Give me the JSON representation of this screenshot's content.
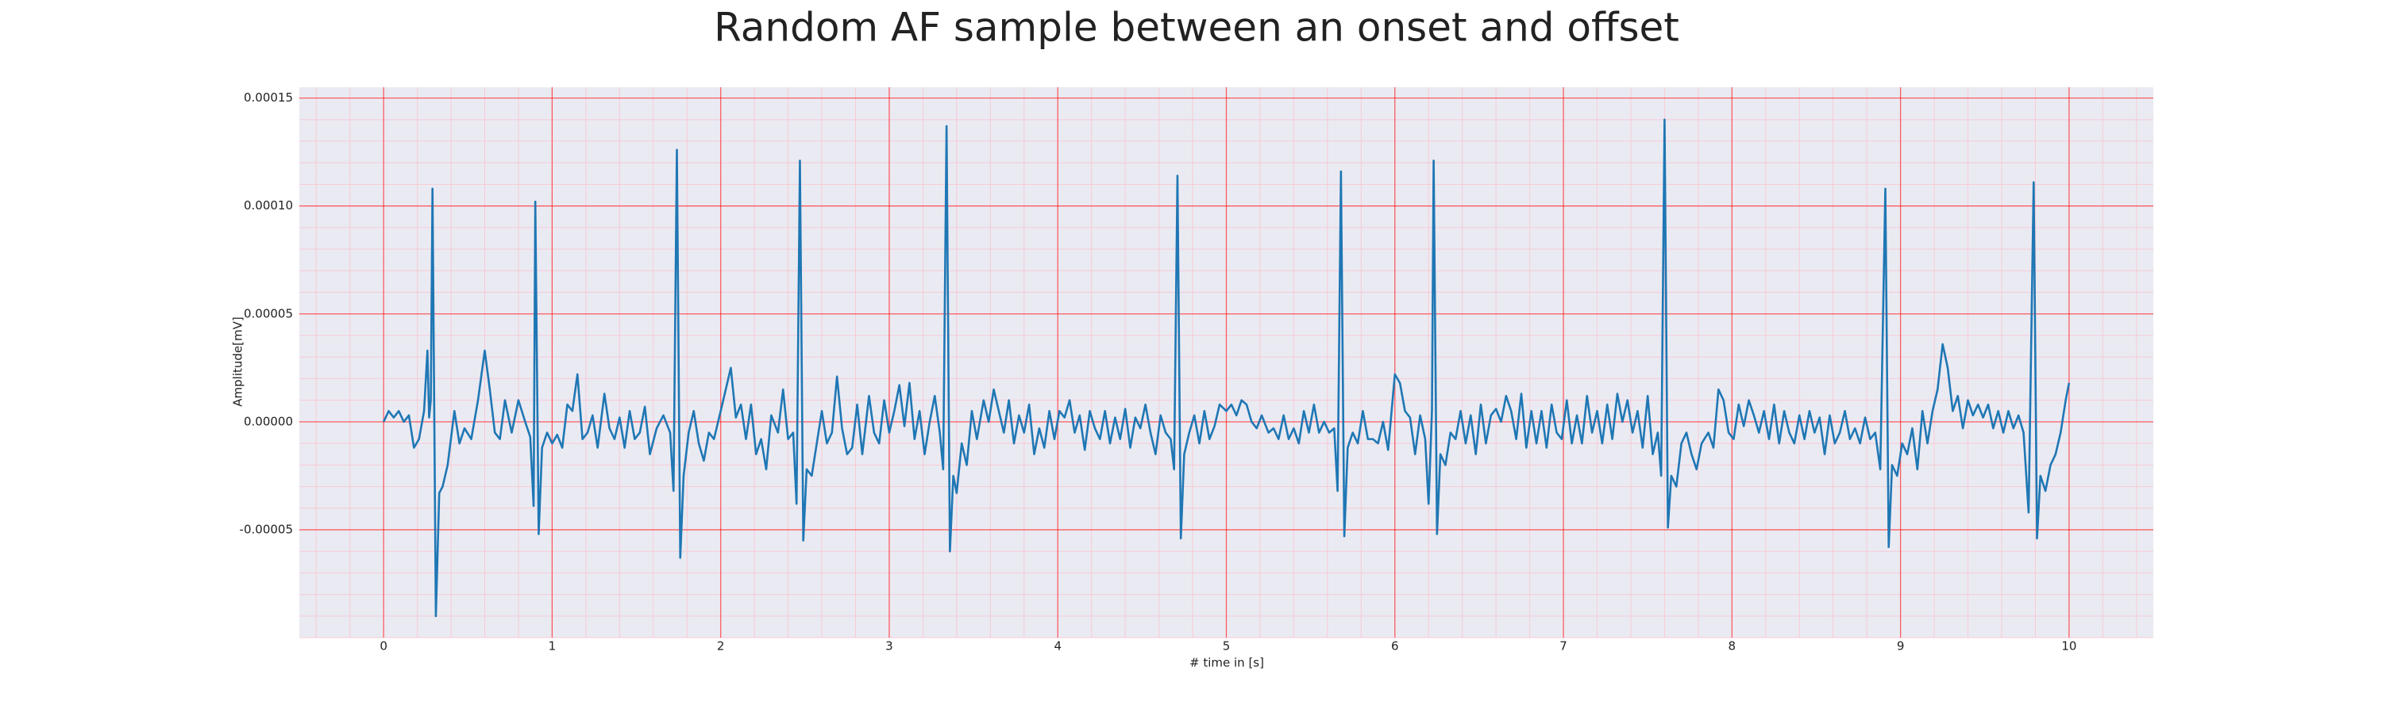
{
  "chart_data": {
    "type": "line",
    "title": "Random AF sample between an onset and offset",
    "x_label": "# time in [s]",
    "y_label": "Amplitude[mV]",
    "color": "#1f77b4",
    "grid": true,
    "minor_grid": true,
    "xlim": [
      -0.5,
      10.5
    ],
    "ylim": [
      -0.0001,
      0.000155
    ],
    "xticks": [
      0,
      1,
      2,
      3,
      4,
      5,
      6,
      7,
      8,
      9,
      10
    ],
    "yticks": [
      {
        "value": -5e-05,
        "label": "-0.00005"
      },
      {
        "value": 0,
        "label": "0.00000"
      },
      {
        "value": 5e-05,
        "label": "0.00005"
      },
      {
        "value": 0.0001,
        "label": "0.00010"
      },
      {
        "value": 0.00015,
        "label": "0.00015"
      }
    ],
    "x": [
      0,
      0.03,
      0.06,
      0.09,
      0.12,
      0.15,
      0.18,
      0.21,
      0.24,
      0.26,
      0.27,
      0.28,
      0.29,
      0.31,
      0.33,
      0.35,
      0.38,
      0.42,
      0.45,
      0.48,
      0.52,
      0.56,
      0.6,
      0.63,
      0.66,
      0.69,
      0.72,
      0.76,
      0.8,
      0.84,
      0.87,
      0.89,
      0.9,
      0.92,
      0.94,
      0.97,
      1.0,
      1.03,
      1.06,
      1.09,
      1.12,
      1.15,
      1.18,
      1.21,
      1.24,
      1.27,
      1.31,
      1.34,
      1.37,
      1.4,
      1.43,
      1.46,
      1.49,
      1.52,
      1.55,
      1.58,
      1.62,
      1.66,
      1.7,
      1.72,
      1.74,
      1.76,
      1.78,
      1.81,
      1.84,
      1.87,
      1.9,
      1.93,
      1.96,
      2.0,
      2.03,
      2.06,
      2.09,
      2.12,
      2.15,
      2.18,
      2.21,
      2.24,
      2.27,
      2.3,
      2.34,
      2.37,
      2.4,
      2.43,
      2.45,
      2.47,
      2.49,
      2.51,
      2.54,
      2.57,
      2.6,
      2.63,
      2.66,
      2.69,
      2.72,
      2.75,
      2.78,
      2.81,
      2.84,
      2.88,
      2.91,
      2.94,
      2.97,
      3.0,
      3.03,
      3.06,
      3.09,
      3.12,
      3.15,
      3.18,
      3.21,
      3.24,
      3.27,
      3.3,
      3.32,
      3.34,
      3.36,
      3.38,
      3.4,
      3.43,
      3.46,
      3.49,
      3.52,
      3.56,
      3.59,
      3.62,
      3.65,
      3.68,
      3.71,
      3.74,
      3.77,
      3.8,
      3.83,
      3.86,
      3.89,
      3.92,
      3.95,
      3.98,
      4.01,
      4.04,
      4.07,
      4.1,
      4.13,
      4.16,
      4.19,
      4.22,
      4.25,
      4.28,
      4.31,
      4.34,
      4.37,
      4.4,
      4.43,
      4.46,
      4.49,
      4.52,
      4.55,
      4.58,
      4.61,
      4.64,
      4.67,
      4.69,
      4.71,
      4.73,
      4.75,
      4.78,
      4.81,
      4.84,
      4.87,
      4.9,
      4.93,
      4.96,
      5.0,
      5.03,
      5.06,
      5.09,
      5.12,
      5.15,
      5.18,
      5.21,
      5.25,
      5.28,
      5.31,
      5.34,
      5.37,
      5.4,
      5.43,
      5.46,
      5.49,
      5.52,
      5.55,
      5.58,
      5.61,
      5.64,
      5.66,
      5.68,
      5.7,
      5.72,
      5.75,
      5.78,
      5.81,
      5.84,
      5.87,
      5.9,
      5.93,
      5.96,
      6.0,
      6.03,
      6.06,
      6.09,
      6.12,
      6.15,
      6.18,
      6.2,
      6.22,
      6.23,
      6.25,
      6.27,
      6.3,
      6.33,
      6.36,
      6.39,
      6.42,
      6.45,
      6.48,
      6.51,
      6.54,
      6.57,
      6.6,
      6.63,
      6.66,
      6.69,
      6.72,
      6.75,
      6.78,
      6.81,
      6.84,
      6.87,
      6.9,
      6.93,
      6.96,
      6.99,
      7.02,
      7.05,
      7.08,
      7.11,
      7.14,
      7.17,
      7.2,
      7.23,
      7.26,
      7.29,
      7.32,
      7.35,
      7.38,
      7.41,
      7.44,
      7.47,
      7.5,
      7.53,
      7.56,
      7.58,
      7.6,
      7.62,
      7.64,
      7.67,
      7.7,
      7.73,
      7.76,
      7.79,
      7.82,
      7.86,
      7.89,
      7.92,
      7.95,
      7.98,
      8.01,
      8.04,
      8.07,
      8.1,
      8.13,
      8.16,
      8.19,
      8.22,
      8.25,
      8.28,
      8.31,
      8.34,
      8.37,
      8.4,
      8.43,
      8.46,
      8.49,
      8.52,
      8.55,
      8.58,
      8.61,
      8.64,
      8.67,
      8.7,
      8.73,
      8.76,
      8.79,
      8.82,
      8.85,
      8.88,
      8.91,
      8.93,
      8.95,
      8.98,
      9.01,
      9.04,
      9.07,
      9.1,
      9.13,
      9.16,
      9.19,
      9.22,
      9.25,
      9.28,
      9.31,
      9.34,
      9.37,
      9.4,
      9.43,
      9.46,
      9.49,
      9.52,
      9.55,
      9.58,
      9.61,
      9.64,
      9.67,
      9.7,
      9.73,
      9.76,
      9.79,
      9.81,
      9.83,
      9.86,
      9.89,
      9.92,
      9.95,
      9.98,
      10.0
    ],
    "values": [
      0,
      5e-06,
      2e-06,
      5e-06,
      0,
      3e-06,
      -1.2e-05,
      -8e-06,
      5e-06,
      3.3e-05,
      2e-06,
      1e-05,
      0.000108,
      -9e-05,
      -3.3e-05,
      -3e-05,
      -2e-05,
      5e-06,
      -1e-05,
      -3e-06,
      -8e-06,
      1e-05,
      3.3e-05,
      1.5e-05,
      -5e-06,
      -8e-06,
      1e-05,
      -5e-06,
      1e-05,
      0,
      -7e-06,
      -3.9e-05,
      0.000102,
      -5.2e-05,
      -1.2e-05,
      -5e-06,
      -1e-05,
      -6e-06,
      -1.2e-05,
      8e-06,
      5e-06,
      2.2e-05,
      -8e-06,
      -5e-06,
      3e-06,
      -1.2e-05,
      1.3e-05,
      -3e-06,
      -8e-06,
      2e-06,
      -1.2e-05,
      5e-06,
      -8e-06,
      -5e-06,
      7e-06,
      -1.5e-05,
      -3e-06,
      3e-06,
      -5e-06,
      -3.2e-05,
      0.000126,
      -6.3e-05,
      -2.5e-05,
      -5e-06,
      5e-06,
      -1e-05,
      -1.8e-05,
      -5e-06,
      -8e-06,
      5e-06,
      1.5e-05,
      2.5e-05,
      2e-06,
      8e-06,
      -8e-06,
      8e-06,
      -1.5e-05,
      -8e-06,
      -2.2e-05,
      3e-06,
      -5e-06,
      1.5e-05,
      -8e-06,
      -5e-06,
      -3.8e-05,
      0.000121,
      -5.5e-05,
      -2.2e-05,
      -2.5e-05,
      -1e-05,
      5e-06,
      -1e-05,
      -5e-06,
      2.1e-05,
      -3e-06,
      -1.5e-05,
      -1.2e-05,
      8e-06,
      -1.5e-05,
      1.2e-05,
      -5e-06,
      -1e-05,
      1e-05,
      -5e-06,
      5e-06,
      1.7e-05,
      -2e-06,
      1.8e-05,
      -8e-06,
      5e-06,
      -1.5e-05,
      0,
      1.2e-05,
      -5e-06,
      -2.2e-05,
      0.000137,
      -6e-05,
      -2.5e-05,
      -3.3e-05,
      -1e-05,
      -2e-05,
      5e-06,
      -8e-06,
      1e-05,
      0,
      1.5e-05,
      5e-06,
      -5e-06,
      1e-05,
      -1e-05,
      3e-06,
      -5e-06,
      8e-06,
      -1.5e-05,
      -3e-06,
      -1.2e-05,
      5e-06,
      -8e-06,
      5e-06,
      2e-06,
      1e-05,
      -5e-06,
      3e-06,
      -1.3e-05,
      5e-06,
      -3e-06,
      -8e-06,
      5e-06,
      -1e-05,
      2e-06,
      -8e-06,
      6e-06,
      -1.2e-05,
      2e-06,
      -3e-06,
      8e-06,
      -5e-06,
      -1.5e-05,
      3e-06,
      -5e-06,
      -8e-06,
      -2.2e-05,
      0.000114,
      -5.4e-05,
      -1.5e-05,
      -5e-06,
      3e-06,
      -1e-05,
      5e-06,
      -8e-06,
      -2e-06,
      8e-06,
      5e-06,
      8e-06,
      3e-06,
      1e-05,
      8e-06,
      0,
      -3e-06,
      3e-06,
      -5e-06,
      -3e-06,
      -8e-06,
      3e-06,
      -8e-06,
      -3e-06,
      -1e-05,
      5e-06,
      -5e-06,
      8e-06,
      -5e-06,
      0,
      -5e-06,
      -3e-06,
      -3.2e-05,
      0.000116,
      -5.3e-05,
      -1.2e-05,
      -5e-06,
      -1e-05,
      5e-06,
      -8e-06,
      -8e-06,
      -1e-05,
      0,
      -1.3e-05,
      2.2e-05,
      1.8e-05,
      5e-06,
      2e-06,
      -1.5e-05,
      3e-06,
      -8e-06,
      -3.8e-05,
      5e-06,
      0.000121,
      -5.2e-05,
      -1.5e-05,
      -2e-05,
      -5e-06,
      -8e-06,
      5e-06,
      -1e-05,
      3e-06,
      -1.5e-05,
      8e-06,
      -1e-05,
      3e-06,
      6e-06,
      0,
      1.2e-05,
      5e-06,
      -8e-06,
      1.3e-05,
      -1.2e-05,
      5e-06,
      -1e-05,
      5e-06,
      -1.2e-05,
      8e-06,
      -5e-06,
      -8e-06,
      1e-05,
      -1e-05,
      3e-06,
      -1e-05,
      1.2e-05,
      -5e-06,
      5e-06,
      -1e-05,
      8e-06,
      -8e-06,
      1.3e-05,
      0,
      1e-05,
      -5e-06,
      5e-06,
      -1.2e-05,
      1.2e-05,
      -1.5e-05,
      -5e-06,
      -2.5e-05,
      0.00014,
      -4.9e-05,
      -2.5e-05,
      -3e-05,
      -1e-05,
      -5e-06,
      -1.5e-05,
      -2.2e-05,
      -1e-05,
      -5e-06,
      -1.2e-05,
      1.5e-05,
      1e-05,
      -5e-06,
      -8e-06,
      8e-06,
      -2e-06,
      1e-05,
      3e-06,
      -5e-06,
      5e-06,
      -8e-06,
      8e-06,
      -1e-05,
      5e-06,
      -5e-06,
      -1e-05,
      3e-06,
      -8e-06,
      5e-06,
      -5e-06,
      2e-06,
      -1.5e-05,
      3e-06,
      -1e-05,
      -5e-06,
      5e-06,
      -8e-06,
      -3e-06,
      -1e-05,
      2e-06,
      -8e-06,
      -5e-06,
      -2.2e-05,
      0.000108,
      -5.8e-05,
      -2e-05,
      -2.5e-05,
      -1e-05,
      -1.5e-05,
      -3e-06,
      -2.2e-05,
      5e-06,
      -1e-05,
      5e-06,
      1.5e-05,
      3.6e-05,
      2.5e-05,
      5e-06,
      1.2e-05,
      -3e-06,
      1e-05,
      3e-06,
      8e-06,
      2e-06,
      8e-06,
      -3e-06,
      5e-06,
      -5e-06,
      5e-06,
      -3e-06,
      3e-06,
      -5e-06,
      -4.2e-05,
      0.000111,
      -5.4e-05,
      -2.5e-05,
      -3.2e-05,
      -2e-05,
      -1.5e-05,
      -5e-06,
      1e-05,
      1.8e-05
    ]
  }
}
